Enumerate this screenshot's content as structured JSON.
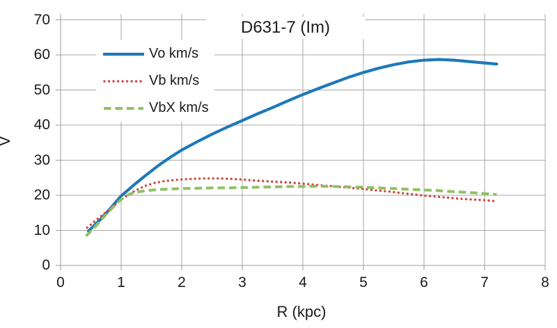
{
  "chart_data": {
    "type": "line",
    "title": "D631-7 (Im)",
    "xlabel": "R (kpc)",
    "ylabel": "V",
    "xlim": [
      0,
      8
    ],
    "ylim": [
      0,
      70
    ],
    "x_ticks": [
      0,
      1,
      2,
      3,
      4,
      5,
      6,
      7,
      8
    ],
    "y_ticks": [
      0,
      10,
      20,
      30,
      40,
      50,
      60,
      70
    ],
    "grid": true,
    "legend_position": "upper-left-inside",
    "style": {
      "grid_color": "#A7A7A7",
      "axis_color": "#9B9B9B",
      "text_color": "#212121",
      "background": "#FFFFFF"
    },
    "series": [
      {
        "name": "Vo km/s",
        "color": "#1E79B9",
        "style": "solid",
        "x": [
          0.46,
          0.65,
          0.8,
          1.0,
          1.2,
          1.4,
          1.6,
          1.8,
          2.0,
          2.25,
          2.5,
          2.75,
          3.0,
          3.25,
          3.5,
          3.75,
          4.0,
          4.25,
          4.5,
          4.75,
          5.0,
          5.25,
          5.5,
          5.75,
          6.0,
          6.25,
          6.5,
          6.75,
          7.0,
          7.2
        ],
        "y": [
          9.8,
          13.0,
          15.8,
          19.8,
          22.8,
          25.6,
          28.3,
          30.7,
          32.9,
          35.2,
          37.4,
          39.4,
          41.3,
          43.2,
          45.0,
          46.9,
          48.7,
          50.4,
          52.0,
          53.6,
          55.0,
          56.2,
          57.2,
          58.0,
          58.5,
          58.7,
          58.5,
          58.1,
          57.7,
          57.4
        ]
      },
      {
        "name": "Vb km/s",
        "color": "#CB4A42",
        "style": "dotted",
        "x": [
          0.44,
          0.55,
          0.65,
          0.75,
          0.85,
          0.95,
          1.1,
          1.25,
          1.4,
          1.55,
          1.7,
          1.85,
          2.0,
          2.2,
          2.4,
          2.6,
          2.8,
          3.0,
          3.2,
          3.4,
          3.6,
          3.8,
          4.0,
          4.2,
          4.4,
          4.6,
          4.8,
          5.0,
          5.2,
          5.4,
          5.6,
          5.8,
          6.0,
          6.2,
          6.4,
          6.6,
          6.8,
          7.0,
          7.2
        ],
        "y": [
          10.8,
          12.4,
          13.8,
          15.2,
          16.6,
          18.0,
          20.0,
          21.5,
          22.7,
          23.5,
          24.0,
          24.3,
          24.5,
          24.7,
          24.8,
          24.8,
          24.7,
          24.5,
          24.2,
          24.0,
          23.8,
          23.6,
          23.3,
          23.0,
          22.7,
          22.4,
          22.1,
          21.8,
          21.4,
          21.1,
          20.7,
          20.3,
          19.9,
          19.6,
          19.3,
          19.0,
          18.8,
          18.6,
          18.3
        ]
      },
      {
        "name": "VbX km/s",
        "color": "#8FC162",
        "style": "dashed",
        "x": [
          0.42,
          0.55,
          0.65,
          0.75,
          0.85,
          0.95,
          1.05,
          1.2,
          1.4,
          1.6,
          1.8,
          2.0,
          2.25,
          2.5,
          2.75,
          3.0,
          3.25,
          3.5,
          3.75,
          4.0,
          4.25,
          4.5,
          4.75,
          5.0,
          5.25,
          5.5,
          5.75,
          6.0,
          6.25,
          6.5,
          6.75,
          7.0,
          7.2
        ],
        "y": [
          8.4,
          10.6,
          12.6,
          14.5,
          16.3,
          18.0,
          19.6,
          20.7,
          21.3,
          21.6,
          21.8,
          21.9,
          22.0,
          22.1,
          22.1,
          22.2,
          22.3,
          22.4,
          22.5,
          22.5,
          22.6,
          22.5,
          22.4,
          22.3,
          22.1,
          21.9,
          21.7,
          21.5,
          21.3,
          21.0,
          20.8,
          20.5,
          20.2
        ]
      }
    ]
  }
}
